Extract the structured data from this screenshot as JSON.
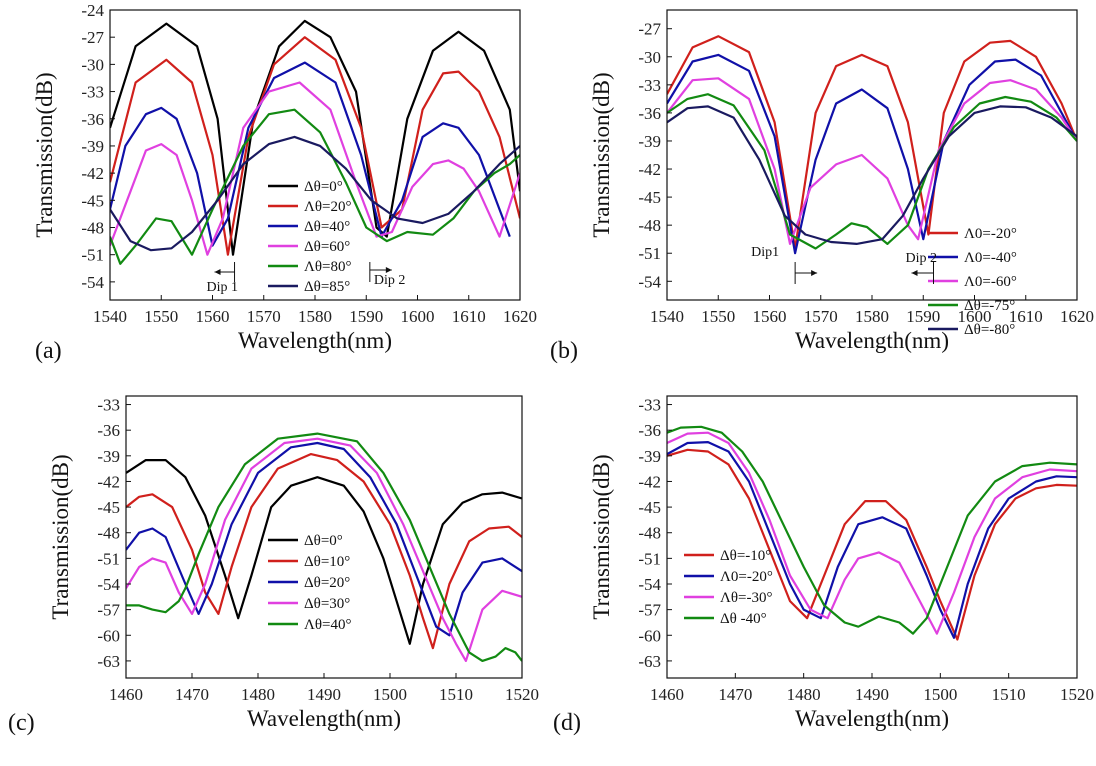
{
  "chart_data": [
    {
      "type": "line",
      "panel_label": "(a)",
      "xlabel": "Wavelength(nm)",
      "ylabel": "Transmission(dB)",
      "xlim": [
        1540,
        1620
      ],
      "ylim": [
        -56,
        -24
      ],
      "xticks": [
        1540,
        1550,
        1560,
        1570,
        1580,
        1590,
        1600,
        1610,
        1620
      ],
      "yticks": [
        -24,
        -27,
        -30,
        -33,
        -36,
        -39,
        -42,
        -45,
        -48,
        -51,
        -54
      ],
      "legend": "lower-center",
      "grid": false,
      "series": [
        {
          "name": "Δθ=0°",
          "color": "#000000",
          "x": [
            1540,
            1545,
            1551,
            1557,
            1561,
            1564,
            1568,
            1573,
            1578,
            1583,
            1588,
            1592,
            1594,
            1598,
            1603,
            1608,
            1613,
            1618,
            1620
          ],
          "y": [
            -37,
            -28,
            -25.5,
            -28,
            -36,
            -51,
            -36,
            -28,
            -25.2,
            -27,
            -33,
            -48,
            -49,
            -36,
            -28.5,
            -26.4,
            -28.5,
            -35,
            -44
          ]
        },
        {
          "name": "Λθ=20°",
          "color": "#d0201c",
          "x": [
            1540,
            1545,
            1551,
            1556,
            1560,
            1563,
            1567,
            1572,
            1578,
            1584,
            1589,
            1593,
            1597,
            1601,
            1605,
            1608,
            1612,
            1616,
            1620
          ],
          "y": [
            -43,
            -32,
            -29.5,
            -32,
            -40,
            -51,
            -38,
            -30,
            -27,
            -29.5,
            -37,
            -48,
            -46,
            -35,
            -31,
            -30.8,
            -33,
            -38,
            -47
          ]
        },
        {
          "name": "Δθ=40°",
          "color": "#1010a8",
          "x": [
            1540,
            1543,
            1547,
            1550,
            1553,
            1557,
            1560,
            1563,
            1567,
            1572,
            1578,
            1584,
            1589,
            1593,
            1597,
            1601,
            1605,
            1608,
            1612,
            1616,
            1618
          ],
          "y": [
            -46,
            -39,
            -35.5,
            -34.8,
            -36,
            -42,
            -50,
            -47,
            -37,
            -31.5,
            -29.8,
            -32,
            -40,
            -49,
            -45,
            -38,
            -36.5,
            -37,
            -40,
            -46,
            -49
          ]
        },
        {
          "name": "Δθ=60°",
          "color": "#e040e0",
          "x": [
            1540,
            1544,
            1547,
            1550,
            1553,
            1556,
            1559,
            1562,
            1566,
            1571,
            1577,
            1583,
            1588,
            1592,
            1595,
            1599,
            1603,
            1606,
            1609,
            1612,
            1616,
            1620
          ],
          "y": [
            -50,
            -44,
            -39.5,
            -38.8,
            -40,
            -45,
            -51,
            -47,
            -37,
            -33,
            -32,
            -35,
            -43,
            -49,
            -48.5,
            -43.5,
            -41,
            -40.6,
            -41.5,
            -44,
            -49,
            -42
          ]
        },
        {
          "name": "Λθ=80°",
          "color": "#128a12",
          "x": [
            1540,
            1542,
            1545,
            1549,
            1552,
            1556,
            1560,
            1566,
            1571,
            1576,
            1581,
            1586,
            1590,
            1594,
            1598,
            1603,
            1607,
            1611,
            1615,
            1618,
            1620
          ],
          "y": [
            -49,
            -52,
            -50,
            -47,
            -47.3,
            -51,
            -46,
            -39,
            -35.5,
            -35,
            -37.5,
            -43,
            -48,
            -49.5,
            -48.5,
            -48.8,
            -47,
            -44,
            -42,
            -41,
            -40
          ]
        },
        {
          "name": "Δθ=85°",
          "color": "#1a1a60",
          "x": [
            1540,
            1544,
            1548,
            1552,
            1556,
            1561,
            1566,
            1571,
            1576,
            1581,
            1586,
            1591,
            1596,
            1601,
            1606,
            1611,
            1616,
            1620
          ],
          "y": [
            -46,
            -49.5,
            -50.5,
            -50.3,
            -48.5,
            -45,
            -41,
            -38.8,
            -38,
            -39,
            -41.5,
            -45,
            -47,
            -47.5,
            -46.5,
            -44,
            -41,
            -39
          ]
        }
      ],
      "annotations": [
        "Dip 1",
        "Dip 2"
      ]
    },
    {
      "type": "line",
      "panel_label": "(b)",
      "xlabel": "Wavelength(nm)",
      "ylabel": "Transmission(dB)",
      "xlim": [
        1540,
        1620
      ],
      "ylim": [
        -56,
        -25
      ],
      "xticks": [
        1540,
        1550,
        1560,
        1570,
        1580,
        1590,
        1600,
        1610,
        1620
      ],
      "yticks": [
        -27,
        -30,
        -33,
        -36,
        -39,
        -42,
        -45,
        -48,
        -51,
        -54
      ],
      "legend": "right",
      "grid": false,
      "series": [
        {
          "name": "Λ0=-20°",
          "color": "#d0201c",
          "x": [
            1540,
            1545,
            1550,
            1556,
            1561,
            1565,
            1569,
            1573,
            1578,
            1583,
            1587,
            1591,
            1594,
            1598,
            1603,
            1607,
            1612,
            1617,
            1620
          ],
          "y": [
            -34,
            -29,
            -27.8,
            -29.5,
            -37,
            -50.5,
            -36,
            -31,
            -29.8,
            -31,
            -37,
            -49,
            -36,
            -30.5,
            -28.5,
            -28.3,
            -30,
            -35,
            -39
          ]
        },
        {
          "name": "Λ0=-40°",
          "color": "#1010a8",
          "x": [
            1540,
            1545,
            1550,
            1556,
            1561,
            1565,
            1569,
            1573,
            1578,
            1583,
            1587,
            1590,
            1594,
            1599,
            1604,
            1608,
            1613,
            1617,
            1620
          ],
          "y": [
            -35,
            -30.5,
            -29.8,
            -31.5,
            -38.5,
            -51,
            -41,
            -35,
            -33.5,
            -35.5,
            -42,
            -49.5,
            -39,
            -33,
            -30.5,
            -30.3,
            -32,
            -36,
            -39
          ]
        },
        {
          "name": "Λ0=-60°",
          "color": "#e040e0",
          "x": [
            1540,
            1545,
            1550,
            1556,
            1561,
            1564,
            1568,
            1573,
            1578,
            1583,
            1587,
            1589,
            1593,
            1598,
            1603,
            1607,
            1612,
            1617,
            1620
          ],
          "y": [
            -36,
            -32.5,
            -32.3,
            -34.5,
            -42,
            -50,
            -44,
            -41.5,
            -40.5,
            -43,
            -48,
            -49.5,
            -40,
            -35,
            -32.8,
            -32.5,
            -33.5,
            -36.5,
            -39
          ]
        },
        {
          "name": "Δθ=-75°",
          "color": "#128a12",
          "x": [
            1540,
            1544,
            1548,
            1553,
            1559,
            1564,
            1569,
            1573,
            1576,
            1579,
            1583,
            1587,
            1591,
            1596,
            1601,
            1606,
            1611,
            1616,
            1620
          ],
          "y": [
            -36,
            -34.5,
            -34,
            -35.2,
            -40,
            -49,
            -50.5,
            -49,
            -47.8,
            -48.2,
            -50,
            -48,
            -42,
            -37.5,
            -35,
            -34.3,
            -34.8,
            -36.5,
            -39
          ]
        },
        {
          "name": "Δθ=-80°",
          "color": "#1a1a60",
          "x": [
            1540,
            1544,
            1548,
            1553,
            1558,
            1563,
            1567,
            1572,
            1577,
            1582,
            1586,
            1590,
            1595,
            1600,
            1605,
            1610,
            1615,
            1620
          ],
          "y": [
            -37,
            -35.5,
            -35.3,
            -36.5,
            -41,
            -47,
            -49,
            -49.8,
            -50,
            -49.5,
            -47,
            -43,
            -38.5,
            -36,
            -35.3,
            -35.4,
            -36.5,
            -38.5
          ]
        }
      ],
      "annotations": [
        "Dip1",
        "Dip 2"
      ]
    },
    {
      "type": "line",
      "panel_label": "(c)",
      "xlabel": "Wavelength(nm)",
      "ylabel": "Transmission(dB)",
      "xlim": [
        1460,
        1520
      ],
      "ylim": [
        -65,
        -32
      ],
      "xticks": [
        1460,
        1470,
        1480,
        1490,
        1500,
        1510,
        1520
      ],
      "yticks": [
        -33,
        -36,
        -39,
        -42,
        -45,
        -48,
        -51,
        -54,
        -57,
        -60,
        -63
      ],
      "legend": "lower-center",
      "grid": false,
      "series": [
        {
          "name": "Δθ=0°",
          "color": "#000000",
          "x": [
            1460,
            1463,
            1466,
            1469,
            1472,
            1475,
            1477,
            1479,
            1482,
            1485,
            1489,
            1493,
            1496,
            1499,
            1501,
            1503,
            1505,
            1508,
            1511,
            1514,
            1517,
            1520
          ],
          "y": [
            -41,
            -39.5,
            -39.5,
            -41.5,
            -46,
            -53,
            -58,
            -53,
            -45,
            -42.5,
            -41.5,
            -42.5,
            -45.5,
            -51,
            -56,
            -61,
            -54,
            -47,
            -44.5,
            -43.5,
            -43.3,
            -44
          ]
        },
        {
          "name": "Δθ=10°",
          "color": "#d0201c",
          "x": [
            1460,
            1462,
            1464,
            1467,
            1470,
            1472,
            1474,
            1476,
            1479,
            1483,
            1488,
            1492,
            1496,
            1500,
            1503,
            1505,
            1506.5,
            1509,
            1512,
            1515,
            1518,
            1520
          ],
          "y": [
            -45,
            -43.8,
            -43.5,
            -45,
            -50,
            -55,
            -57.5,
            -52,
            -45,
            -40.5,
            -38.8,
            -39.5,
            -42,
            -47,
            -53,
            -58,
            -61.5,
            -54,
            -49,
            -47.5,
            -47.3,
            -48.5
          ]
        },
        {
          "name": "Δθ=20°",
          "color": "#1010a8",
          "x": [
            1460,
            1462,
            1464,
            1466,
            1469,
            1471,
            1473,
            1476,
            1480,
            1485,
            1489,
            1493,
            1497,
            1501,
            1504,
            1507,
            1509,
            1511,
            1514,
            1517,
            1520
          ],
          "y": [
            -50,
            -48,
            -47.5,
            -48.5,
            -54,
            -57.5,
            -54,
            -47,
            -41,
            -38,
            -37.5,
            -38.2,
            -41.5,
            -47,
            -53,
            -59,
            -60,
            -55,
            -51.5,
            -51,
            -52.5
          ]
        },
        {
          "name": "Δθ=30°",
          "color": "#e040e0",
          "x": [
            1460,
            1462,
            1464,
            1466,
            1468,
            1470,
            1472,
            1475,
            1479,
            1484,
            1489,
            1494,
            1498,
            1502,
            1505,
            1508,
            1510,
            1511.5,
            1514,
            1517,
            1520
          ],
          "y": [
            -54.5,
            -52,
            -51,
            -51.5,
            -55,
            -57.5,
            -54,
            -46.5,
            -40.5,
            -37.5,
            -37,
            -37.8,
            -41,
            -47,
            -52.5,
            -58,
            -61,
            -63,
            -57,
            -54.8,
            -55.5
          ]
        },
        {
          "name": "Λθ=40°",
          "color": "#128a12",
          "x": [
            1460,
            1462,
            1464,
            1466,
            1468,
            1469,
            1471,
            1474,
            1478,
            1483,
            1489,
            1495,
            1499,
            1503,
            1506,
            1509,
            1512,
            1514,
            1516,
            1517.5,
            1519,
            1520
          ],
          "y": [
            -56.5,
            -56.5,
            -57,
            -57.3,
            -56,
            -54.5,
            -50.5,
            -45,
            -40,
            -37,
            -36.4,
            -37.3,
            -41,
            -46.5,
            -52,
            -57.5,
            -62,
            -63,
            -62.5,
            -61.5,
            -62,
            -63
          ]
        }
      ]
    },
    {
      "type": "line",
      "panel_label": "(d)",
      "xlabel": "Wavelength(nm)",
      "ylabel": "Transmission(dB)",
      "xlim": [
        1460,
        1520
      ],
      "ylim": [
        -65,
        -32
      ],
      "xticks": [
        1460,
        1470,
        1480,
        1490,
        1500,
        1510,
        1520
      ],
      "yticks": [
        -33,
        -36,
        -39,
        -42,
        -45,
        -48,
        -51,
        -54,
        -57,
        -60,
        -63
      ],
      "legend": "lower-left",
      "grid": false,
      "series": [
        {
          "name": "Δθ=-10°",
          "color": "#d0201c",
          "x": [
            1460,
            1463,
            1466,
            1469,
            1472,
            1475,
            1478,
            1480.5,
            1483,
            1486,
            1489,
            1492,
            1495,
            1498,
            1500,
            1502.5,
            1505,
            1508,
            1511,
            1514,
            1517,
            1520
          ],
          "y": [
            -39,
            -38.3,
            -38.5,
            -40,
            -44,
            -50,
            -56,
            -58,
            -53,
            -47,
            -44.3,
            -44.3,
            -46.5,
            -52,
            -56,
            -60.5,
            -53,
            -47,
            -44,
            -42.8,
            -42.4,
            -42.5
          ]
        },
        {
          "name": "Λ0=-20°",
          "color": "#1010a8",
          "x": [
            1460,
            1463,
            1466,
            1469,
            1472,
            1475,
            1478,
            1480,
            1482.5,
            1485,
            1488,
            1491.5,
            1495,
            1498,
            1500,
            1502,
            1504,
            1507,
            1510,
            1514,
            1517,
            1520
          ],
          "y": [
            -38.8,
            -37.5,
            -37.4,
            -38.5,
            -42,
            -48,
            -54,
            -57,
            -58,
            -52,
            -47,
            -46.2,
            -47.5,
            -53,
            -57,
            -60.3,
            -54,
            -47.5,
            -44,
            -42,
            -41.4,
            -41.5
          ]
        },
        {
          "name": "Λθ=-30°",
          "color": "#e040e0",
          "x": [
            1460,
            1463,
            1466,
            1469,
            1472,
            1475,
            1478,
            1481,
            1483.5,
            1486,
            1488,
            1491,
            1494,
            1497,
            1499.5,
            1502,
            1505,
            1508,
            1512,
            1516,
            1520
          ],
          "y": [
            -37.5,
            -36.4,
            -36.3,
            -37.5,
            -41,
            -46.5,
            -53,
            -57,
            -58,
            -53.5,
            -51,
            -50.3,
            -51.5,
            -56,
            -59.8,
            -55,
            -48.5,
            -44,
            -41.5,
            -40.6,
            -40.8
          ]
        },
        {
          "name": "Δθ -40°",
          "color": "#128a12",
          "x": [
            1460,
            1462,
            1465,
            1468,
            1471,
            1474,
            1477,
            1480,
            1483,
            1486,
            1488,
            1491,
            1494,
            1496,
            1498,
            1501,
            1504,
            1508,
            1512,
            1516,
            1520
          ],
          "y": [
            -36.3,
            -35.7,
            -35.6,
            -36.3,
            -38.5,
            -42,
            -47,
            -52,
            -56.5,
            -58.5,
            -59,
            -57.8,
            -58.5,
            -59.8,
            -58,
            -52,
            -46,
            -42,
            -40.2,
            -39.8,
            -40
          ]
        }
      ]
    }
  ]
}
